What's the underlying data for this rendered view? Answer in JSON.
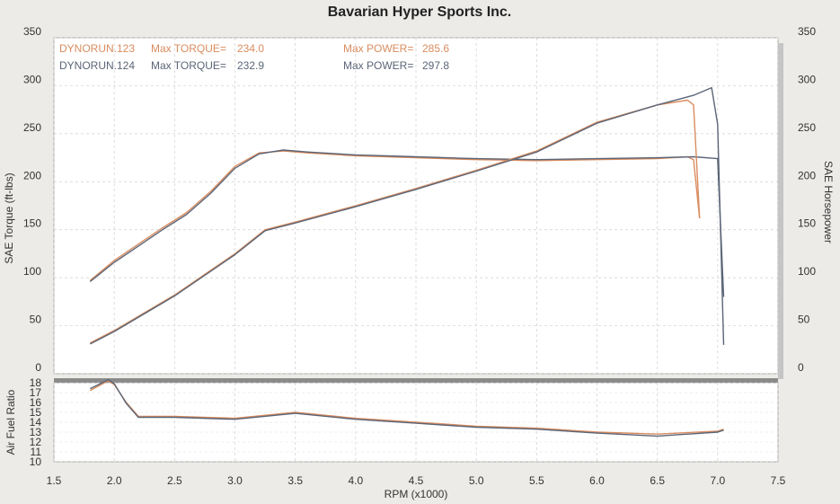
{
  "chart_data": {
    "type": "line",
    "title": "Bavarian Hyper Sports Inc.",
    "xlabel": "RPM (x1000)",
    "ylabel_left": "SAE Torque (ft-lbs)",
    "ylabel_right": "SAE Horsepower",
    "afr_label": "Air Fuel Ratio",
    "x_ticks": [
      "1.5",
      "2.0",
      "2.5",
      "3.0",
      "3.5",
      "4.0",
      "4.5",
      "5.0",
      "5.5",
      "6.0",
      "6.5",
      "7.0",
      "7.5"
    ],
    "y_ticks": [
      "350",
      "300",
      "250",
      "200",
      "150",
      "100",
      "50",
      "0"
    ],
    "afr_ticks": [
      "18",
      "17",
      "16",
      "15",
      "14",
      "13",
      "12",
      "11",
      "10"
    ],
    "xlim": [
      1.5,
      7.5
    ],
    "ylim": [
      0,
      350
    ],
    "afr_lim": [
      10,
      18
    ],
    "grid": true,
    "legend": [
      {
        "run": "DYNORUN.123",
        "torque_label": "Max TORQUE=",
        "torque_value": "234.0",
        "power_label": "Max POWER=",
        "power_value": "285.6",
        "color": "#d98c5f"
      },
      {
        "run": "DYNORUN.124",
        "torque_label": "Max TORQUE=",
        "torque_value": "232.9",
        "power_label": "Max POWER=",
        "power_value": "297.8",
        "color": "#5b6577"
      }
    ],
    "series": [
      {
        "name": "DYNORUN.123",
        "metric": "torque",
        "color": "#d98c5f",
        "x": [
          1.8,
          2.0,
          2.2,
          2.4,
          2.6,
          2.8,
          3.0,
          3.2,
          3.4,
          3.6,
          4.0,
          4.5,
          5.0,
          5.5,
          6.0,
          6.5,
          6.75,
          6.8,
          6.85
        ],
        "y": [
          97,
          118,
          135,
          152,
          168,
          190,
          216,
          230,
          232,
          230,
          227,
          225,
          223,
          222,
          223,
          224,
          226,
          223,
          162
        ]
      },
      {
        "name": "DYNORUN.124",
        "metric": "torque",
        "color": "#5b6577",
        "x": [
          1.8,
          2.0,
          2.2,
          2.4,
          2.6,
          2.8,
          3.0,
          3.2,
          3.4,
          3.6,
          4.0,
          4.5,
          5.0,
          5.5,
          6.0,
          6.5,
          6.8,
          7.0,
          7.05
        ],
        "y": [
          96,
          116,
          133,
          150,
          166,
          188,
          214,
          229,
          233,
          231,
          228,
          226,
          224,
          223,
          224,
          225,
          226,
          224,
          80
        ]
      },
      {
        "name": "DYNORUN.123",
        "metric": "power",
        "color": "#d98c5f",
        "x": [
          1.8,
          2.0,
          2.5,
          3.0,
          3.25,
          3.5,
          4.0,
          4.5,
          5.0,
          5.5,
          6.0,
          6.5,
          6.75,
          6.8,
          6.85
        ],
        "y": [
          32,
          45,
          82,
          125,
          150,
          158,
          175,
          193,
          212,
          232,
          262,
          280,
          285,
          280,
          162
        ]
      },
      {
        "name": "DYNORUN.124",
        "metric": "power",
        "color": "#5b6577",
        "x": [
          1.8,
          2.0,
          2.5,
          3.0,
          3.25,
          3.5,
          4.0,
          4.5,
          5.0,
          5.5,
          6.0,
          6.5,
          6.8,
          6.95,
          7.0,
          7.05
        ],
        "y": [
          31,
          44,
          81,
          124,
          149,
          157,
          174,
          192,
          211,
          231,
          261,
          280,
          290,
          298,
          260,
          30
        ]
      },
      {
        "name": "DYNORUN.123",
        "metric": "afr",
        "color": "#d98c5f",
        "x": [
          1.8,
          1.95,
          2.0,
          2.1,
          2.2,
          2.5,
          3.0,
          3.5,
          4.0,
          4.5,
          5.0,
          5.5,
          6.0,
          6.5,
          7.0,
          7.05
        ],
        "y": [
          17.2,
          18.2,
          17.8,
          16.0,
          14.6,
          14.6,
          14.4,
          15.0,
          14.4,
          14.0,
          13.6,
          13.4,
          13.0,
          12.8,
          13.1,
          13.3
        ]
      },
      {
        "name": "DYNORUN.124",
        "metric": "afr",
        "color": "#5b6577",
        "x": [
          1.8,
          1.95,
          2.0,
          2.1,
          2.2,
          2.5,
          3.0,
          3.5,
          4.0,
          4.5,
          5.0,
          5.5,
          6.0,
          6.5,
          7.0,
          7.05
        ],
        "y": [
          17.4,
          18.3,
          17.9,
          15.9,
          14.5,
          14.5,
          14.3,
          14.9,
          14.3,
          13.9,
          13.5,
          13.3,
          12.9,
          12.6,
          13.0,
          13.2
        ]
      }
    ]
  }
}
